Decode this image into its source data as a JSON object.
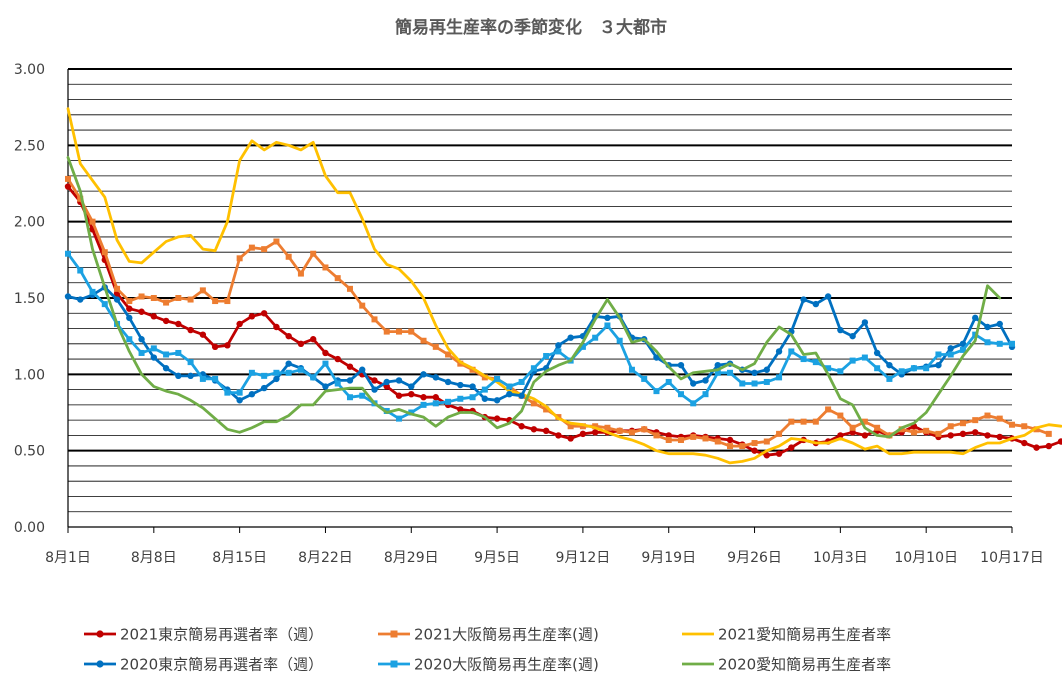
{
  "chart_data": {
    "type": "line",
    "title": "簡易再生産率の季節変化　３大都市",
    "xlabel": "",
    "ylabel": "",
    "ylim": [
      0,
      3
    ],
    "yticks": [
      "0.00",
      "0.50",
      "1.00",
      "1.50",
      "2.00",
      "2.50",
      "3.00"
    ],
    "xlim": [
      1,
      78
    ],
    "xticks": [
      {
        "day": 1,
        "label": "8月1日"
      },
      {
        "day": 8,
        "label": "8月8日"
      },
      {
        "day": 15,
        "label": "8月15日"
      },
      {
        "day": 22,
        "label": "8月22日"
      },
      {
        "day": 29,
        "label": "8月29日"
      },
      {
        "day": 36,
        "label": "9月5日"
      },
      {
        "day": 43,
        "label": "9月12日"
      },
      {
        "day": 50,
        "label": "9月19日"
      },
      {
        "day": 57,
        "label": "9月26日"
      },
      {
        "day": 64,
        "label": "10月3日"
      },
      {
        "day": 71,
        "label": "10月10日"
      },
      {
        "day": 78,
        "label": "10月17日"
      }
    ],
    "grid": true,
    "legend_position": "bottom",
    "series": [
      {
        "name": "2021東京簡易再選者率（週）",
        "color": "#c00000",
        "marker": "circle",
        "start_day": 1,
        "values": [
          2.23,
          2.13,
          1.95,
          1.75,
          1.53,
          1.43,
          1.41,
          1.38,
          1.35,
          1.33,
          1.29,
          1.26,
          1.18,
          1.19,
          1.33,
          1.38,
          1.4,
          1.31,
          1.25,
          1.2,
          1.23,
          1.14,
          1.1,
          1.05,
          1.0,
          0.96,
          0.92,
          0.86,
          0.87,
          0.85,
          0.85,
          0.8,
          0.77,
          0.76,
          0.72,
          0.71,
          0.7,
          0.66,
          0.64,
          0.63,
          0.6,
          0.58,
          0.61,
          0.62,
          0.62,
          0.63,
          0.63,
          0.64,
          0.62,
          0.6,
          0.59,
          0.6,
          0.59,
          0.58,
          0.57,
          0.54,
          0.5,
          0.47,
          0.48,
          0.52,
          0.57,
          0.55,
          0.56,
          0.6,
          0.62,
          0.6,
          0.63,
          0.6,
          0.62,
          0.66,
          0.62,
          0.59,
          0.6,
          0.61,
          0.62,
          0.6,
          0.59,
          0.58,
          0.55,
          0.52,
          0.53,
          0.56
        ]
      },
      {
        "name": "2021大阪簡易再生産率(週)",
        "color": "#ed7d31",
        "marker": "square",
        "start_day": 1,
        "values": [
          2.28,
          2.15,
          2.0,
          1.8,
          1.56,
          1.48,
          1.51,
          1.5,
          1.47,
          1.5,
          1.49,
          1.55,
          1.48,
          1.48,
          1.76,
          1.83,
          1.82,
          1.87,
          1.77,
          1.66,
          1.79,
          1.7,
          1.63,
          1.56,
          1.45,
          1.36,
          1.28,
          1.28,
          1.28,
          1.22,
          1.18,
          1.13,
          1.07,
          1.03,
          0.98,
          0.97,
          0.92,
          0.86,
          0.81,
          0.77,
          0.72,
          0.66,
          0.66,
          0.66,
          0.65,
          0.63,
          0.62,
          0.64,
          0.6,
          0.57,
          0.57,
          0.59,
          0.58,
          0.56,
          0.53,
          0.53,
          0.55,
          0.56,
          0.61,
          0.69,
          0.69,
          0.69,
          0.77,
          0.73,
          0.65,
          0.69,
          0.65,
          0.6,
          0.64,
          0.62,
          0.63,
          0.61,
          0.66,
          0.68,
          0.7,
          0.73,
          0.71,
          0.67,
          0.66,
          0.64,
          0.61
        ]
      },
      {
        "name": "2021愛知簡易再生産者率",
        "color": "#ffc000",
        "marker": "none",
        "start_day": 1,
        "values": [
          2.74,
          2.38,
          2.27,
          2.16,
          1.88,
          1.74,
          1.73,
          1.8,
          1.87,
          1.9,
          1.91,
          1.82,
          1.81,
          2.0,
          2.4,
          2.53,
          2.47,
          2.52,
          2.5,
          2.47,
          2.52,
          2.3,
          2.19,
          2.19,
          2.02,
          1.82,
          1.72,
          1.69,
          1.61,
          1.5,
          1.32,
          1.17,
          1.08,
          1.04,
          0.99,
          0.95,
          0.89,
          0.87,
          0.84,
          0.79,
          0.71,
          0.68,
          0.67,
          0.65,
          0.62,
          0.59,
          0.57,
          0.54,
          0.5,
          0.48,
          0.48,
          0.48,
          0.47,
          0.45,
          0.42,
          0.43,
          0.45,
          0.5,
          0.53,
          0.58,
          0.57,
          0.55,
          0.55,
          0.58,
          0.55,
          0.51,
          0.53,
          0.48,
          0.48,
          0.49,
          0.49,
          0.49,
          0.49,
          0.48,
          0.52,
          0.55,
          0.55,
          0.58,
          0.6,
          0.65,
          0.67,
          0.66
        ]
      },
      {
        "name": "2020東京簡易再選者率（週）",
        "color": "#0070c0",
        "marker": "circle",
        "start_day": 1,
        "values": [
          1.51,
          1.49,
          1.52,
          1.57,
          1.49,
          1.37,
          1.23,
          1.11,
          1.04,
          0.99,
          0.99,
          1.0,
          0.96,
          0.9,
          0.83,
          0.87,
          0.91,
          0.97,
          1.07,
          1.04,
          0.98,
          0.92,
          0.96,
          0.96,
          1.03,
          0.9,
          0.95,
          0.96,
          0.92,
          1.0,
          0.98,
          0.95,
          0.93,
          0.92,
          0.84,
          0.83,
          0.87,
          0.86,
          1.02,
          1.04,
          1.19,
          1.24,
          1.25,
          1.38,
          1.37,
          1.38,
          1.24,
          1.23,
          1.11,
          1.06,
          1.06,
          0.94,
          0.96,
          1.06,
          1.07,
          1.03,
          1.01,
          1.03,
          1.15,
          1.28,
          1.49,
          1.46,
          1.51,
          1.29,
          1.25,
          1.34,
          1.14,
          1.06,
          1.0,
          1.04,
          1.05,
          1.06,
          1.17,
          1.2,
          1.37,
          1.31,
          1.33,
          1.18
        ]
      },
      {
        "name": "2020大阪簡易再生産率(週)",
        "color": "#1ba1e2",
        "marker": "square",
        "start_day": 1,
        "values": [
          1.79,
          1.68,
          1.54,
          1.46,
          1.33,
          1.23,
          1.14,
          1.17,
          1.13,
          1.14,
          1.08,
          0.97,
          0.97,
          0.88,
          0.88,
          1.01,
          0.99,
          1.01,
          1.01,
          1.03,
          0.98,
          1.07,
          0.94,
          0.85,
          0.86,
          0.81,
          0.76,
          0.71,
          0.75,
          0.8,
          0.81,
          0.82,
          0.84,
          0.85,
          0.9,
          0.97,
          0.92,
          0.95,
          1.04,
          1.12,
          1.15,
          1.09,
          1.18,
          1.24,
          1.32,
          1.22,
          1.03,
          0.97,
          0.89,
          0.95,
          0.87,
          0.81,
          0.87,
          1.01,
          1.01,
          0.94,
          0.94,
          0.95,
          0.98,
          1.15,
          1.1,
          1.08,
          1.04,
          1.02,
          1.09,
          1.11,
          1.04,
          0.97,
          1.02,
          1.04,
          1.04,
          1.13,
          1.13,
          1.16,
          1.26,
          1.21,
          1.2,
          1.2
        ]
      },
      {
        "name": "2020愛知簡易再生産者率",
        "color": "#70ad47",
        "marker": "none",
        "start_day": 1,
        "values": [
          2.42,
          2.2,
          1.82,
          1.57,
          1.33,
          1.15,
          1.0,
          0.92,
          0.89,
          0.87,
          0.83,
          0.78,
          0.71,
          0.64,
          0.62,
          0.65,
          0.69,
          0.69,
          0.73,
          0.8,
          0.8,
          0.89,
          0.9,
          0.91,
          0.91,
          0.81,
          0.75,
          0.77,
          0.74,
          0.72,
          0.66,
          0.72,
          0.75,
          0.75,
          0.72,
          0.65,
          0.68,
          0.76,
          0.95,
          1.02,
          1.06,
          1.09,
          1.21,
          1.36,
          1.49,
          1.37,
          1.21,
          1.23,
          1.15,
          1.05,
          0.97,
          1.01,
          1.02,
          1.03,
          1.07,
          1.03,
          1.07,
          1.21,
          1.31,
          1.26,
          1.13,
          1.14,
          1.0,
          0.84,
          0.8,
          0.65,
          0.6,
          0.59,
          0.65,
          0.68,
          0.75,
          0.87,
          0.99,
          1.12,
          1.22,
          1.58,
          1.5
        ]
      }
    ]
  }
}
